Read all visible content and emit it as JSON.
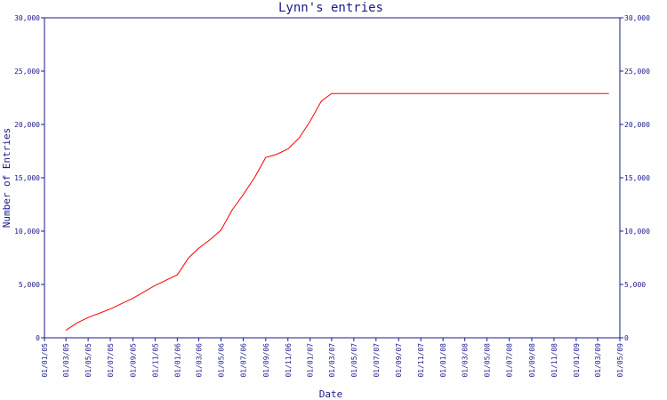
{
  "chart_data": {
    "type": "line",
    "title": "Lynn's entries",
    "xlabel": "Date",
    "ylabel": "Number of Entries",
    "ylim": [
      0,
      30000
    ],
    "yticks": [
      0,
      5000,
      10000,
      15000,
      20000,
      25000,
      30000
    ],
    "ytick_labels": [
      "0",
      "5,000",
      "10,000",
      "15,000",
      "20,000",
      "25,000",
      "30,000"
    ],
    "xlim": [
      "2005-01-01",
      "2009-05-01"
    ],
    "xtick_labels": [
      "01/01/05",
      "01/03/05",
      "01/05/05",
      "01/07/05",
      "01/09/05",
      "01/11/05",
      "01/01/06",
      "01/03/06",
      "01/05/06",
      "01/07/06",
      "01/09/06",
      "01/11/06",
      "01/01/07",
      "01/03/07",
      "01/05/07",
      "01/07/07",
      "01/09/07",
      "01/11/07",
      "01/01/08",
      "01/03/08",
      "01/05/08",
      "01/07/08",
      "01/09/08",
      "01/11/08",
      "01/01/09",
      "01/03/09",
      "01/05/09"
    ],
    "grid": false,
    "line_color": "#ff0000",
    "axis_color": "#1a1a8c",
    "series": [
      {
        "x": [
          "2005-03-01",
          "2005-04-01",
          "2005-05-01",
          "2005-06-01",
          "2005-07-01",
          "2005-08-01",
          "2005-09-01",
          "2005-10-01",
          "2005-11-01",
          "2005-12-01",
          "2006-01-01",
          "2006-02-01",
          "2006-03-01",
          "2006-04-01",
          "2006-05-01",
          "2006-06-01",
          "2006-07-01",
          "2006-08-01",
          "2006-09-01",
          "2006-10-01",
          "2006-11-01",
          "2006-12-01",
          "2007-01-01",
          "2007-02-01",
          "2007-03-01",
          "2007-04-01",
          "2009-04-01"
        ],
        "values": [
          700,
          1400,
          1900,
          2300,
          2700,
          3200,
          3700,
          4300,
          4900,
          5400,
          5900,
          7500,
          8400,
          9200,
          10100,
          12000,
          13400,
          15000,
          16900,
          17200,
          17700,
          18700,
          20300,
          22200,
          22900,
          22900,
          22900
        ]
      }
    ]
  }
}
